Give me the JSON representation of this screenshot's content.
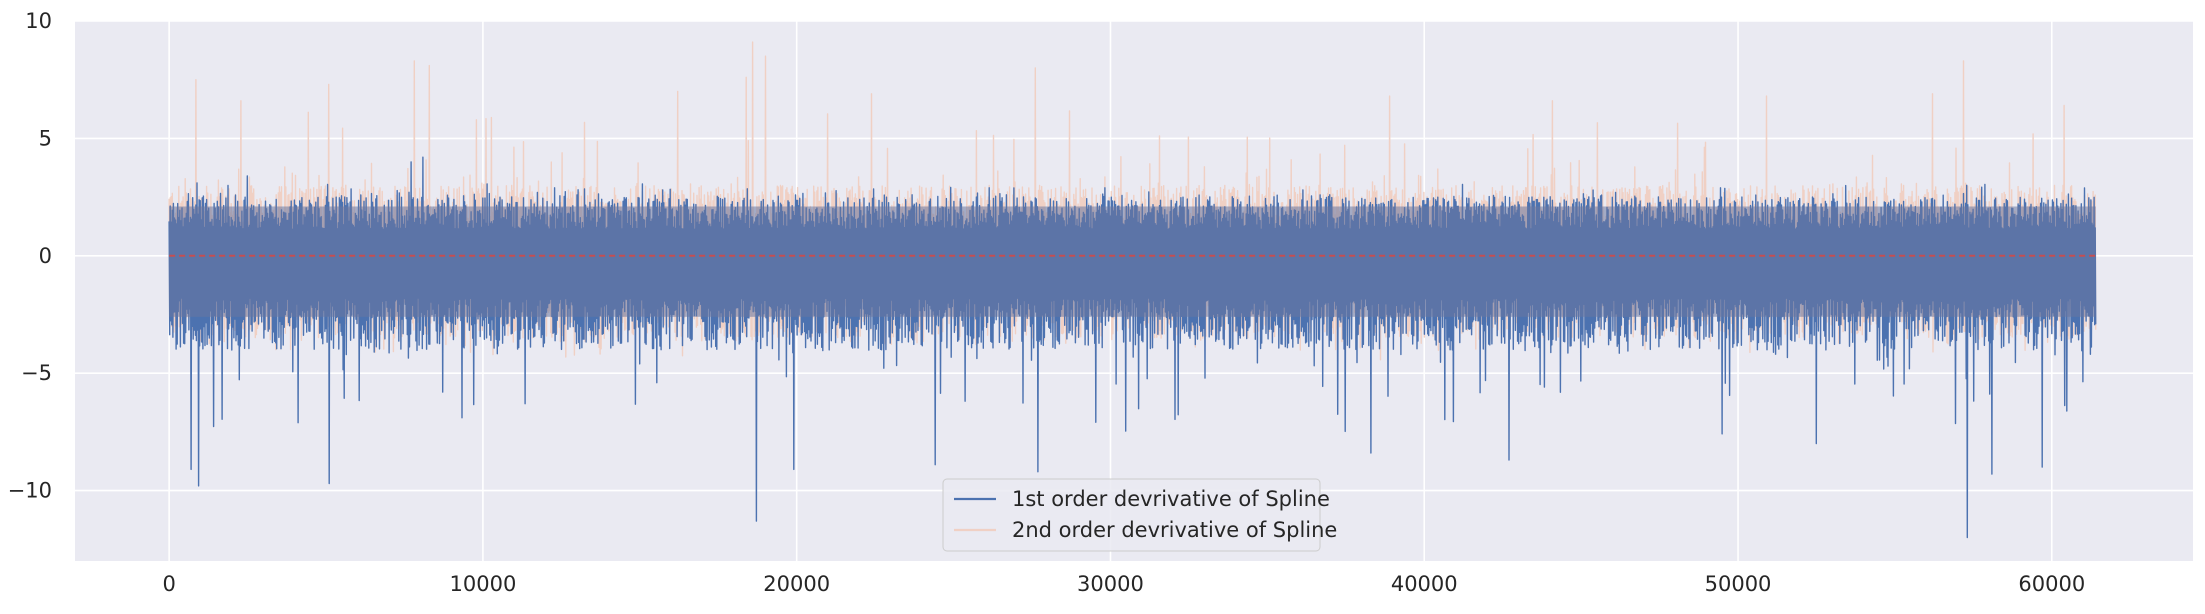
{
  "chart_data": {
    "type": "line",
    "title": "",
    "xlabel": "",
    "ylabel": "",
    "xlim": [
      -3000,
      64500
    ],
    "ylim": [
      -13,
      10
    ],
    "x_range": [
      0,
      61400
    ],
    "grid": true,
    "legend_placement": "lower-center",
    "x_ticks": [
      {
        "value": 0,
        "label": "0"
      },
      {
        "value": 10000,
        "label": "10000"
      },
      {
        "value": 20000,
        "label": "20000"
      },
      {
        "value": 30000,
        "label": "30000"
      },
      {
        "value": 40000,
        "label": "40000"
      },
      {
        "value": 50000,
        "label": "50000"
      },
      {
        "value": 60000,
        "label": "60000"
      }
    ],
    "y_ticks": [
      {
        "value": 10,
        "label": "10"
      },
      {
        "value": 5,
        "label": "5"
      },
      {
        "value": 0,
        "label": "0"
      },
      {
        "value": -5,
        "label": "−5"
      },
      {
        "value": -10,
        "label": "−10"
      }
    ],
    "series": [
      {
        "name": "2nd order devrivative of Spline",
        "color": "#f0d0c4",
        "typical_band": [
          -3.5,
          3
        ],
        "peaks": [
          {
            "x": 850,
            "y": 7.5
          },
          {
            "x": 2300,
            "y": 6.6
          },
          {
            "x": 5100,
            "y": 7.3
          },
          {
            "x": 7800,
            "y": 8.3
          },
          {
            "x": 8300,
            "y": 8.1
          },
          {
            "x": 16200,
            "y": 7.0
          },
          {
            "x": 18400,
            "y": 7.6
          },
          {
            "x": 18600,
            "y": 9.1
          },
          {
            "x": 19000,
            "y": 8.5
          },
          {
            "x": 22400,
            "y": 6.9
          },
          {
            "x": 27600,
            "y": 8.0
          },
          {
            "x": 38900,
            "y": 6.8
          },
          {
            "x": 44100,
            "y": 6.6
          },
          {
            "x": 50900,
            "y": 6.8
          },
          {
            "x": 56200,
            "y": 6.9
          },
          {
            "x": 57200,
            "y": 8.3
          },
          {
            "x": 60400,
            "y": 6.4
          }
        ]
      },
      {
        "name": "1st order devrivative of Spline",
        "color": "#4c72b0",
        "typical_band": [
          -4,
          2.5
        ],
        "peaks": [
          {
            "x": 8100,
            "y": 4.2
          },
          {
            "x": 7700,
            "y": 4.0
          },
          {
            "x": 2500,
            "y": 3.4
          },
          {
            "x": 57300,
            "y": 3.0
          },
          {
            "x": 950,
            "y": -9.8
          },
          {
            "x": 700,
            "y": -9.1
          },
          {
            "x": 5100,
            "y": -9.7
          },
          {
            "x": 18700,
            "y": -11.3
          },
          {
            "x": 19900,
            "y": -9.1
          },
          {
            "x": 27700,
            "y": -9.2
          },
          {
            "x": 24400,
            "y": -8.9
          },
          {
            "x": 42700,
            "y": -8.7
          },
          {
            "x": 38300,
            "y": -8.4
          },
          {
            "x": 57300,
            "y": -12.0
          },
          {
            "x": 58100,
            "y": -9.3
          },
          {
            "x": 59700,
            "y": -9.0
          },
          {
            "x": 52500,
            "y": -8.0
          }
        ]
      },
      {
        "name": "",
        "color": "#c44e52",
        "style": "dashed",
        "constant": 0
      }
    ]
  }
}
